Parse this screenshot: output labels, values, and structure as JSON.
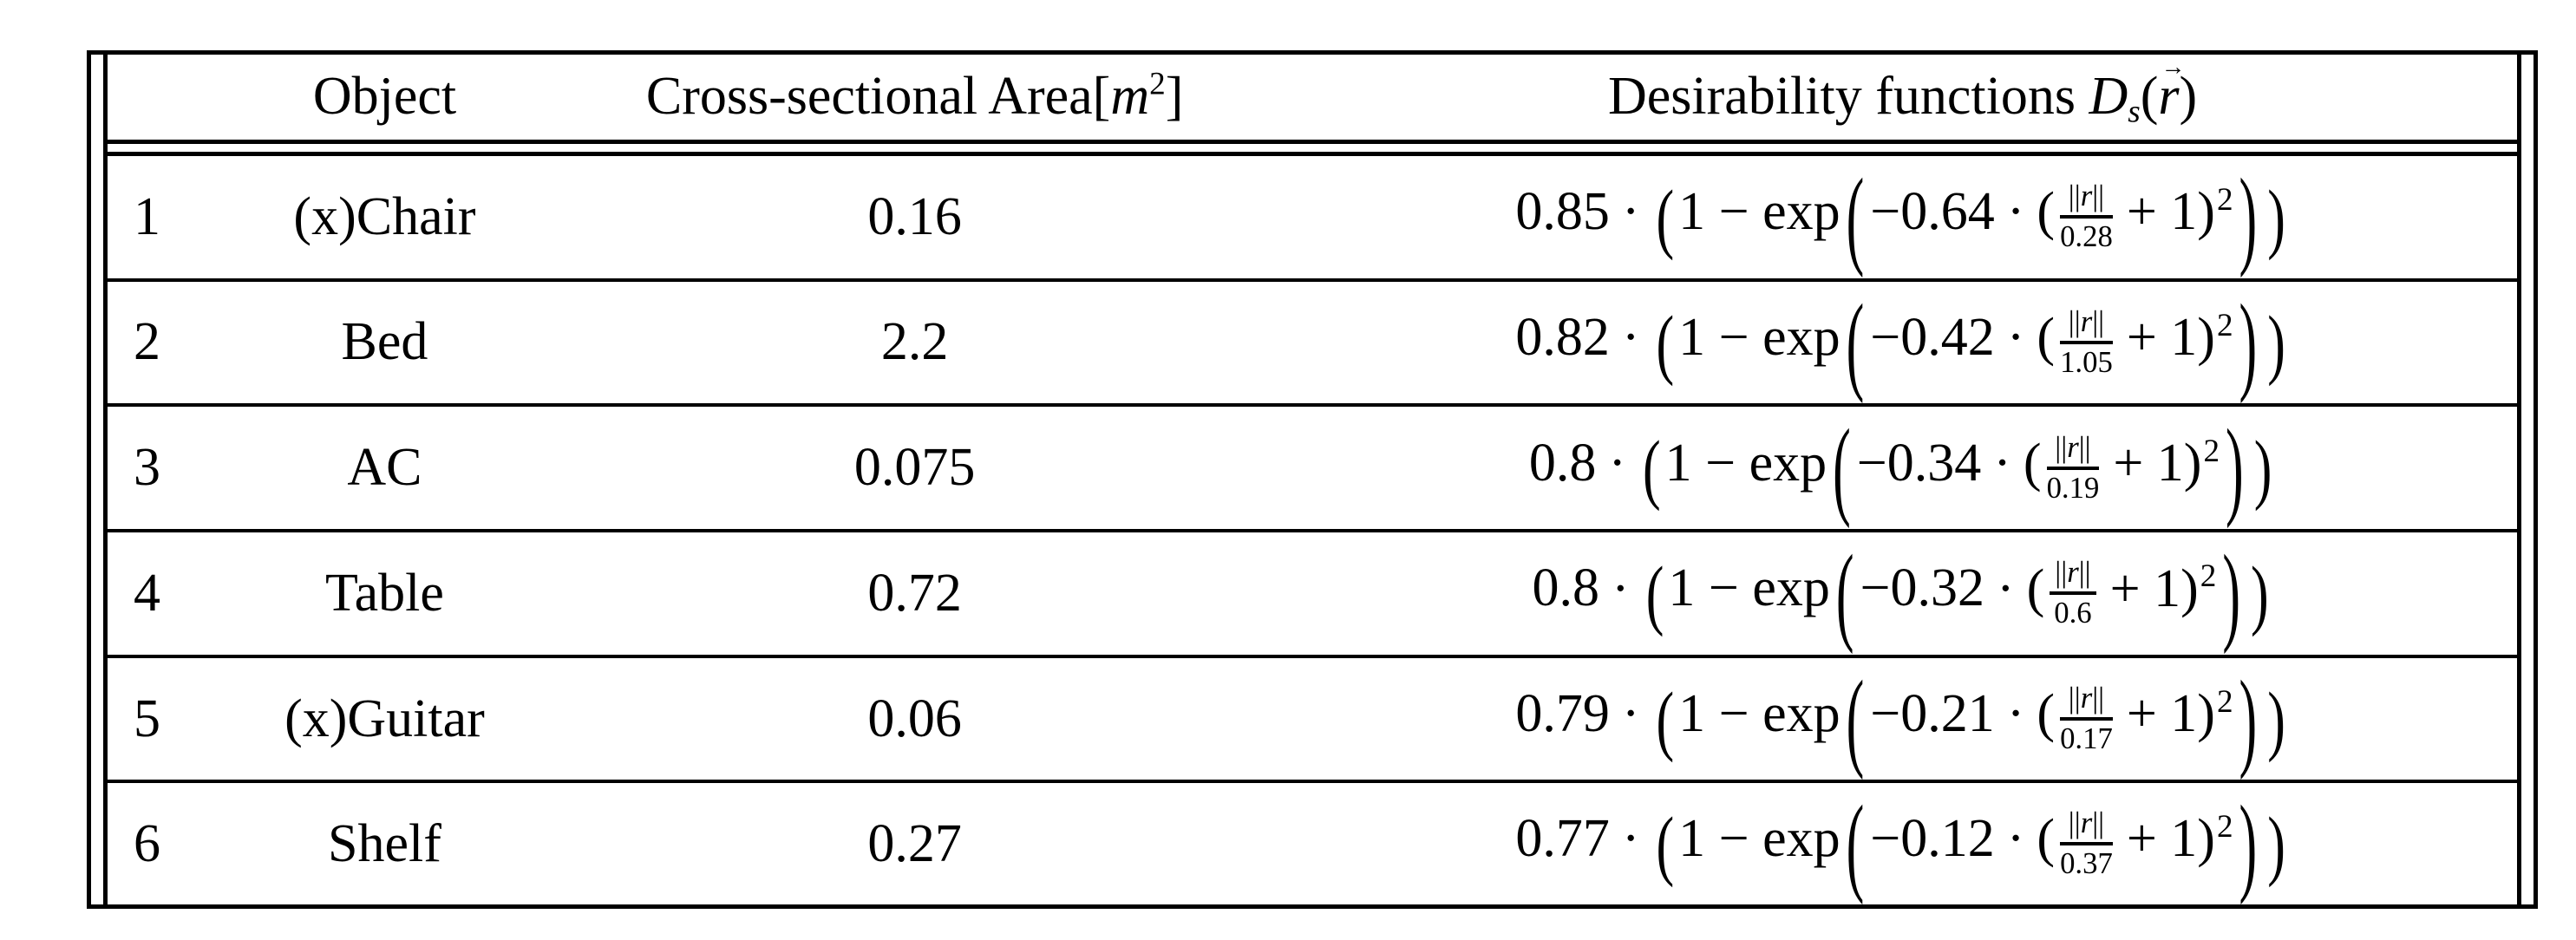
{
  "colors": {
    "text": "#000000",
    "background": "#ffffff",
    "border": "#000000"
  },
  "table": {
    "header": {
      "col_index": "",
      "col_object": "Object",
      "area_prefix": "Cross-sectional Area[",
      "area_unit": "m",
      "area_exponent": "2",
      "area_suffix": "]",
      "des_prefix": "Desirability functions ",
      "des_symbol": "D",
      "des_subscript": "s",
      "des_open": "(",
      "des_vec_arrow": "→",
      "des_var": "r",
      "des_close": ")"
    },
    "formula_tokens": {
      "dot": "·",
      "open_mid": "(",
      "one_minus_exp": "1 − exp",
      "open_big": "(",
      "open_small": "(",
      "norm_open": "||",
      "r_var": "r",
      "norm_close": "||",
      "plus_one": "+ 1",
      "close_small": ")",
      "exponent": "2",
      "close_big": ")",
      "close_mid": ")"
    },
    "rows": [
      {
        "index": "1",
        "object": "(x)Chair",
        "area": "0.16",
        "coef": "0.85",
        "rate": "−0.64",
        "denom": "0.28"
      },
      {
        "index": "2",
        "object": "Bed",
        "area": "2.2",
        "coef": "0.82",
        "rate": "−0.42",
        "denom": "1.05"
      },
      {
        "index": "3",
        "object": "AC",
        "area": "0.075",
        "coef": "0.8",
        "rate": "−0.34",
        "denom": "0.19"
      },
      {
        "index": "4",
        "object": "Table",
        "area": "0.72",
        "coef": "0.8",
        "rate": "−0.32",
        "denom": "0.6"
      },
      {
        "index": "5",
        "object": "(x)Guitar",
        "area": "0.06",
        "coef": "0.79",
        "rate": "−0.21",
        "denom": "0.17"
      },
      {
        "index": "6",
        "object": "Shelf",
        "area": "0.27",
        "coef": "0.77",
        "rate": "−0.12",
        "denom": "0.37"
      }
    ]
  }
}
